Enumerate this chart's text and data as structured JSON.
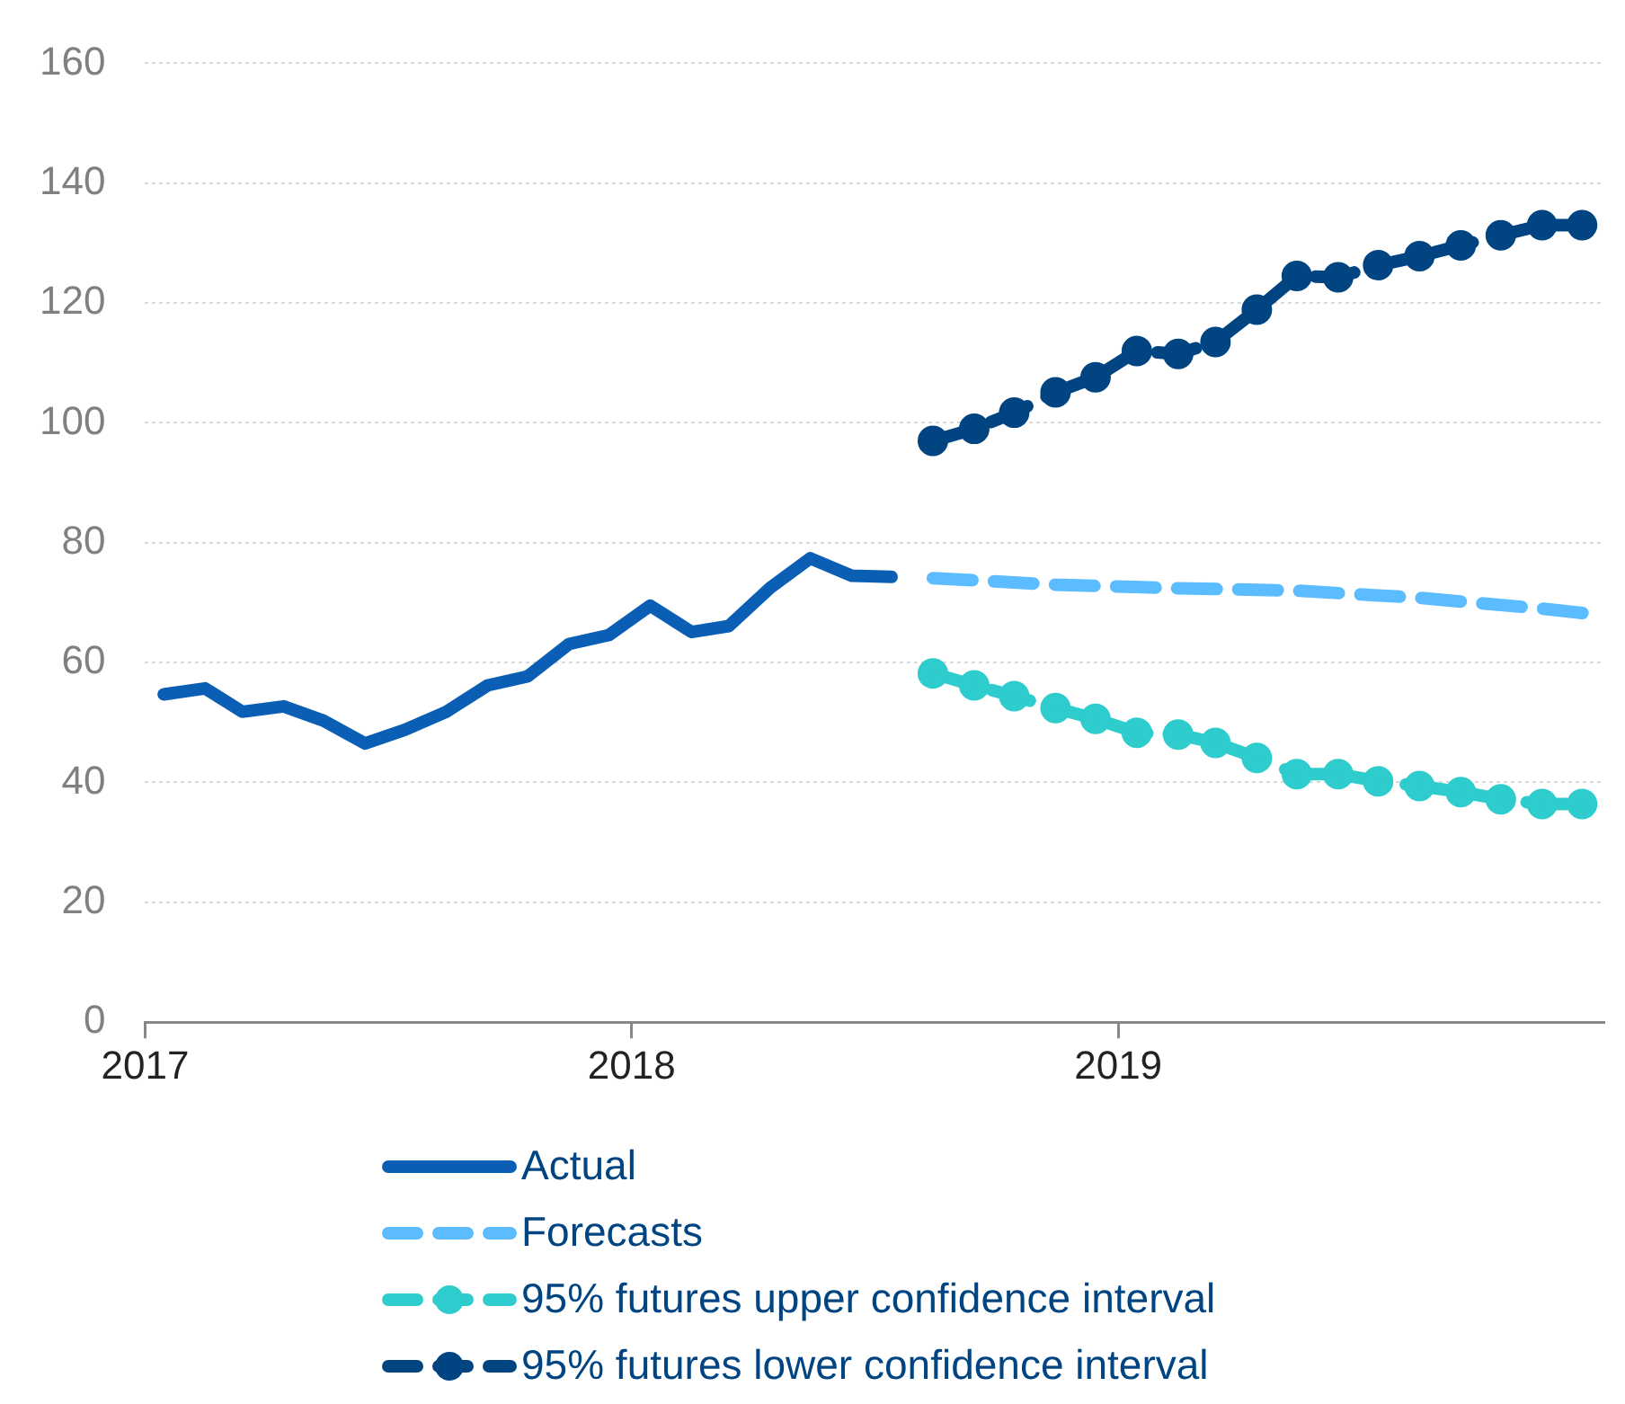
{
  "chart_data": {
    "type": "line",
    "xlim": [
      "2017-01-01",
      "2019-12-31"
    ],
    "xticks": [
      "2017",
      "2018",
      "2019"
    ],
    "ylim": [
      0,
      160
    ],
    "yticks": [
      0,
      20,
      40,
      60,
      80,
      100,
      120,
      140,
      160
    ],
    "grid": "y",
    "legend": "bottom",
    "series": [
      {
        "name": "Actual",
        "color": "#0a5fb4",
        "line_style": "solid",
        "marker": "none",
        "x": [
          "2017-01-15",
          "2017-02-15",
          "2017-03-15",
          "2017-04-15",
          "2017-05-15",
          "2017-06-15",
          "2017-07-15",
          "2017-08-15",
          "2017-09-15",
          "2017-10-15",
          "2017-11-15",
          "2017-12-15",
          "2018-01-15",
          "2018-02-15",
          "2018-03-15",
          "2018-04-15",
          "2018-05-15",
          "2018-06-15",
          "2018-07-15"
        ],
        "values": [
          54.7,
          55.7,
          51.8,
          52.7,
          50.3,
          46.5,
          48.8,
          51.8,
          56.2,
          57.7,
          63.1,
          64.6,
          69.5,
          65.1,
          66.1,
          72.5,
          77.4,
          74.5,
          74.3
        ]
      },
      {
        "name": "Forecasts",
        "color": "#5bbcff",
        "line_style": "dashed",
        "marker": "none",
        "x": [
          "2018-08-15",
          "2018-11-15",
          "2019-02-15",
          "2019-05-15",
          "2019-08-15",
          "2019-11-15",
          "2019-12-31"
        ],
        "values": [
          74.1,
          73.0,
          72.4,
          72.0,
          70.8,
          69.0,
          67.9
        ]
      },
      {
        "name": "95% futures upper confidence interval",
        "color": "#2ecccc",
        "line_style": "dashed",
        "marker": "circle",
        "x": [
          "2018-08-15",
          "2018-09-15",
          "2018-10-15",
          "2018-11-15",
          "2018-12-15",
          "2019-01-15",
          "2019-02-15",
          "2019-03-15",
          "2019-04-15",
          "2019-05-15",
          "2019-06-15",
          "2019-07-15",
          "2019-08-15",
          "2019-09-15",
          "2019-10-15",
          "2019-11-15",
          "2019-12-15"
        ],
        "values": [
          58.2,
          56.2,
          54.4,
          52.4,
          50.6,
          48.3,
          48.0,
          46.6,
          44.1,
          41.4,
          41.4,
          40.2,
          39.4,
          38.4,
          37.2,
          36.4,
          36.4
        ]
      },
      {
        "name": "95% futures lower confidence interval",
        "color": "#004481",
        "line_style": "dashed",
        "marker": "circle",
        "x": [
          "2018-08-15",
          "2018-09-15",
          "2018-10-15",
          "2018-11-15",
          "2018-12-15",
          "2019-01-15",
          "2019-02-15",
          "2019-03-15",
          "2019-04-15",
          "2019-05-15",
          "2019-06-15",
          "2019-07-15",
          "2019-08-15",
          "2019-09-15",
          "2019-10-15",
          "2019-11-15",
          "2019-12-15"
        ],
        "values": [
          97.0,
          99.0,
          101.7,
          105.1,
          107.6,
          112.0,
          111.5,
          113.5,
          118.9,
          124.5,
          124.3,
          126.3,
          127.8,
          129.6,
          131.3,
          133.0,
          133.0
        ]
      }
    ]
  }
}
